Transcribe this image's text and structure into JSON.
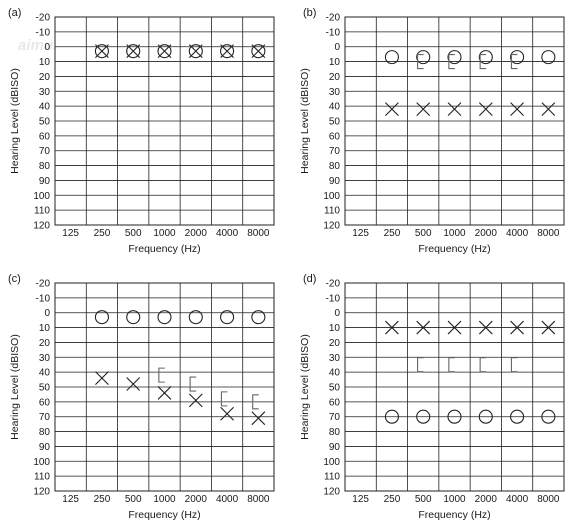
{
  "watermark": "aimu.",
  "common": {
    "ylabel": "Hearing Level (dBISO)",
    "xlabel": "Frequency (Hz)",
    "x_categories": [
      "125",
      "250",
      "500",
      "1000",
      "2000",
      "4000",
      "8000"
    ],
    "y_ticks": [
      "-20",
      "-10",
      "0",
      "10",
      "20",
      "30",
      "40",
      "50",
      "60",
      "70",
      "80",
      "90",
      "100",
      "110",
      "120"
    ],
    "ylim": [
      -20,
      120
    ],
    "y_direction": "inverted",
    "grid": true
  },
  "chart_data": [
    {
      "panel": "(a)",
      "type": "scatter",
      "xlabel": "Frequency (Hz)",
      "ylabel": "Hearing Level (dBISO)",
      "ylim": [
        -20,
        120
      ],
      "series": [
        {
          "symbol": "X",
          "points": [
            [
              250,
              3
            ],
            [
              500,
              3
            ],
            [
              1000,
              3
            ],
            [
              2000,
              3
            ],
            [
              4000,
              3
            ],
            [
              8000,
              3
            ]
          ]
        },
        {
          "symbol": "O",
          "points": [
            [
              250,
              3
            ],
            [
              500,
              3
            ],
            [
              1000,
              3
            ],
            [
              2000,
              3
            ],
            [
              4000,
              3
            ],
            [
              8000,
              3
            ]
          ]
        }
      ]
    },
    {
      "panel": "(b)",
      "type": "scatter",
      "xlabel": "Frequency (Hz)",
      "ylabel": "Hearing Level (dBISO)",
      "ylim": [
        -20,
        120
      ],
      "series": [
        {
          "symbol": "O",
          "points": [
            [
              250,
              7
            ],
            [
              500,
              7
            ],
            [
              1000,
              7
            ],
            [
              2000,
              7
            ],
            [
              4000,
              7
            ],
            [
              8000,
              7
            ]
          ]
        },
        {
          "symbol": "bracket",
          "points": [
            [
              500,
              10
            ],
            [
              1000,
              10
            ],
            [
              2000,
              10
            ],
            [
              4000,
              10
            ]
          ]
        },
        {
          "symbol": "X",
          "points": [
            [
              250,
              42
            ],
            [
              500,
              42
            ],
            [
              1000,
              42
            ],
            [
              2000,
              42
            ],
            [
              4000,
              42
            ],
            [
              8000,
              42
            ]
          ]
        }
      ]
    },
    {
      "panel": "(c)",
      "type": "scatter",
      "xlabel": "Frequency (Hz)",
      "ylabel": "Hearing Level (dBISO)",
      "ylim": [
        -20,
        120
      ],
      "series": [
        {
          "symbol": "O",
          "points": [
            [
              250,
              3
            ],
            [
              500,
              3
            ],
            [
              1000,
              3
            ],
            [
              2000,
              3
            ],
            [
              4000,
              3
            ],
            [
              8000,
              3
            ]
          ]
        },
        {
          "symbol": "X",
          "points": [
            [
              250,
              44
            ],
            [
              500,
              48
            ],
            [
              1000,
              54
            ],
            [
              2000,
              59
            ],
            [
              4000,
              68
            ],
            [
              8000,
              71
            ]
          ]
        },
        {
          "symbol": "bracket",
          "points": [
            [
              1000,
              42
            ],
            [
              2000,
              48
            ],
            [
              4000,
              58
            ],
            [
              8000,
              60
            ]
          ]
        }
      ]
    },
    {
      "panel": "(d)",
      "type": "scatter",
      "xlabel": "Frequency (Hz)",
      "ylabel": "Hearing Level (dBISO)",
      "ylim": [
        -20,
        120
      ],
      "series": [
        {
          "symbol": "X",
          "points": [
            [
              250,
              10
            ],
            [
              500,
              10
            ],
            [
              1000,
              10
            ],
            [
              2000,
              10
            ],
            [
              4000,
              10
            ],
            [
              8000,
              10
            ]
          ]
        },
        {
          "symbol": "bracket",
          "points": [
            [
              500,
              35
            ],
            [
              1000,
              35
            ],
            [
              2000,
              35
            ],
            [
              4000,
              35
            ]
          ]
        },
        {
          "symbol": "O",
          "points": [
            [
              250,
              70
            ],
            [
              500,
              70
            ],
            [
              1000,
              70
            ],
            [
              2000,
              70
            ],
            [
              4000,
              70
            ],
            [
              8000,
              70
            ]
          ]
        }
      ]
    }
  ]
}
